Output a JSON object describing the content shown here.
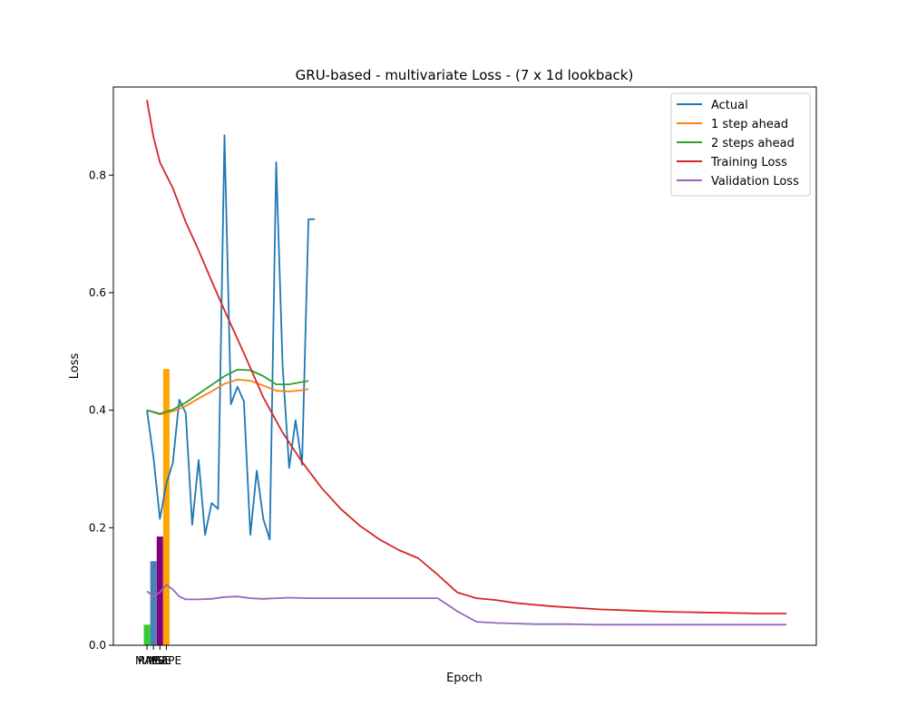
{
  "chart_data": {
    "type": "line",
    "title": "GRU-based - multivariate Loss - (7 x 1d lookback)",
    "xlabel": "Epoch",
    "ylabel": "Loss",
    "ylim": [
      0,
      0.95
    ],
    "xlim": [
      -5.2,
      103.6
    ],
    "yticks": [
      0.0,
      0.2,
      0.4,
      0.6,
      0.8
    ],
    "xtick_labels": [
      "MAE",
      "RMSE",
      "MSE",
      "MAPE"
    ],
    "grid": false,
    "legend_position": "top-right",
    "bars": [
      {
        "name": "MAE",
        "x": 0,
        "value": 0.035,
        "color": "#32cd32"
      },
      {
        "name": "RMSE",
        "x": 1,
        "value": 0.143,
        "color": "#4682b4"
      },
      {
        "name": "MSE",
        "x": 2,
        "value": 0.185,
        "color": "#800080"
      },
      {
        "name": "MAPE",
        "x": 3,
        "value": 0.47,
        "color": "#ffa500"
      }
    ],
    "series": [
      {
        "name": "Actual",
        "color": "#1f77b4",
        "x": [
          0,
          1,
          2,
          3,
          4,
          5,
          6,
          7,
          8,
          9,
          10,
          11,
          12,
          13,
          14,
          15,
          16,
          17,
          18,
          19,
          20,
          21,
          22,
          23,
          24,
          25,
          26
        ],
        "values": [
          0.4,
          0.32,
          0.215,
          0.275,
          0.31,
          0.418,
          0.395,
          0.205,
          0.315,
          0.188,
          0.242,
          0.232,
          0.868,
          0.41,
          0.44,
          0.415,
          0.188,
          0.297,
          0.215,
          0.18,
          0.822,
          0.475,
          0.302,
          0.383,
          0.307,
          0.725,
          0.725
        ]
      },
      {
        "name": "1 step ahead",
        "color": "#ff7f0e",
        "x": [
          0,
          2,
          4,
          6,
          8,
          10,
          12,
          14,
          16,
          18,
          20,
          22,
          24,
          25
        ],
        "values": [
          0.4,
          0.393,
          0.398,
          0.407,
          0.42,
          0.432,
          0.445,
          0.452,
          0.45,
          0.442,
          0.433,
          0.432,
          0.434,
          0.436
        ]
      },
      {
        "name": "2 steps ahead",
        "color": "#2ca02c",
        "x": [
          0,
          2,
          4,
          6,
          8,
          10,
          12,
          14,
          16,
          18,
          20,
          22,
          24,
          25
        ],
        "values": [
          0.4,
          0.394,
          0.401,
          0.413,
          0.428,
          0.443,
          0.458,
          0.469,
          0.468,
          0.458,
          0.444,
          0.444,
          0.448,
          0.45
        ]
      },
      {
        "name": "Training Loss",
        "color": "#d62728",
        "x": [
          0,
          1,
          2,
          3,
          4,
          6,
          8,
          10,
          12,
          15,
          18,
          21,
          24,
          27,
          30,
          33,
          36,
          39,
          42,
          45,
          48,
          51,
          54,
          57,
          60,
          63,
          66,
          70,
          75,
          80,
          85,
          90,
          95,
          99
        ],
        "values": [
          0.928,
          0.865,
          0.822,
          0.8,
          0.778,
          0.72,
          0.672,
          0.62,
          0.57,
          0.497,
          0.422,
          0.362,
          0.312,
          0.268,
          0.232,
          0.203,
          0.18,
          0.162,
          0.148,
          0.12,
          0.09,
          0.08,
          0.077,
          0.072,
          0.069,
          0.066,
          0.064,
          0.061,
          0.059,
          0.057,
          0.056,
          0.055,
          0.054,
          0.054
        ]
      },
      {
        "name": "Validation Loss",
        "color": "#9467bd",
        "x": [
          0,
          1,
          2,
          3,
          4,
          5,
          6,
          8,
          10,
          12,
          14,
          16,
          18,
          20,
          22,
          25,
          30,
          35,
          40,
          45,
          48,
          51,
          54,
          57,
          60,
          65,
          70,
          80,
          90,
          99
        ],
        "values": [
          0.092,
          0.083,
          0.09,
          0.103,
          0.095,
          0.083,
          0.078,
          0.078,
          0.079,
          0.082,
          0.083,
          0.08,
          0.079,
          0.08,
          0.081,
          0.08,
          0.08,
          0.08,
          0.08,
          0.08,
          0.058,
          0.04,
          0.038,
          0.037,
          0.036,
          0.036,
          0.035,
          0.035,
          0.035,
          0.035
        ]
      }
    ]
  }
}
